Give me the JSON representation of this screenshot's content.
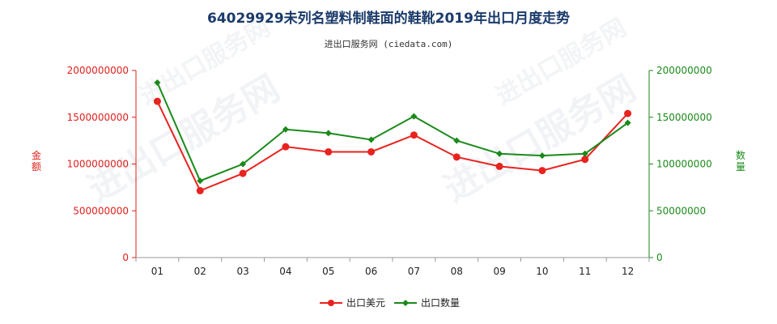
{
  "chart_data": {
    "type": "line",
    "title": "64029929未列名塑料制鞋面的鞋靴2019年出口月度走势",
    "subtitle": "进出口服务网 (ciedata.com)",
    "categories": [
      "01",
      "02",
      "03",
      "04",
      "05",
      "06",
      "07",
      "08",
      "09",
      "10",
      "11",
      "12"
    ],
    "y_left": {
      "label": "金额",
      "range": [
        0,
        2000000000
      ],
      "ticks": [
        "0",
        "500000000",
        "1000000000",
        "1500000000",
        "2000000000"
      ]
    },
    "y_right": {
      "label": "数量",
      "range": [
        0,
        200000000
      ],
      "ticks": [
        "0",
        "50000000",
        "100000000",
        "150000000",
        "200000000"
      ]
    },
    "series": [
      {
        "name": "出口美元",
        "axis": "left",
        "color": "#e8231f",
        "marker": "circle",
        "values": [
          1670000000,
          715000000,
          900000000,
          1185000000,
          1130000000,
          1130000000,
          1310000000,
          1075000000,
          975000000,
          930000000,
          1050000000,
          1540000000
        ]
      },
      {
        "name": "出口数量",
        "axis": "right",
        "color": "#1a8a1a",
        "marker": "diamond",
        "values": [
          187000000,
          82000000,
          100000000,
          137000000,
          133000000,
          126000000,
          151000000,
          125000000,
          111000000,
          109000000,
          111000000,
          144000000
        ]
      }
    ],
    "grid": false,
    "legend_position": "bottom-center",
    "watermark": "进出口服务网"
  }
}
